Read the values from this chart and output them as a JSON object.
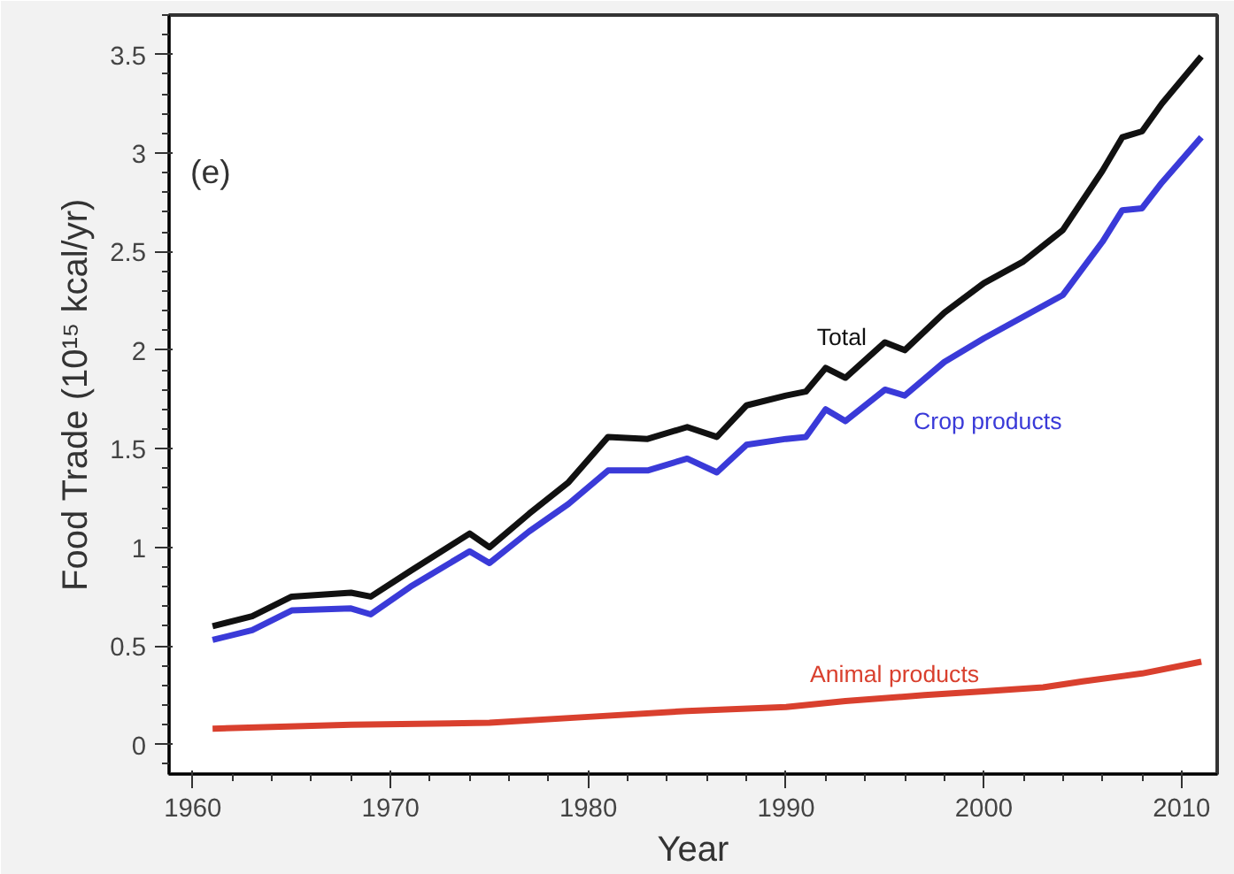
{
  "chart_data": {
    "type": "line",
    "xlabel": "Year",
    "ylabel": "Food Trade (10¹⁵ kcal/yr)",
    "annotations": [
      "(e)"
    ],
    "xlim": [
      1958.8,
      2011.8
    ],
    "ylim": [
      -0.15,
      3.7
    ],
    "xticks": [
      1960,
      1970,
      1980,
      1990,
      2000,
      2010
    ],
    "yticks": [
      0,
      0.5,
      1,
      1.5,
      2,
      2.5,
      3,
      3.5
    ],
    "grid": false,
    "legend": false,
    "marker": "none",
    "line_style": "solid",
    "series": [
      {
        "name": "Total",
        "color": "#111111",
        "x": [
          1961,
          1963,
          1965,
          1968,
          1969,
          1971,
          1974,
          1975,
          1977,
          1979,
          1981,
          1983,
          1985,
          1986.5,
          1988,
          1990,
          1991,
          1992,
          1993,
          1995,
          1996,
          1998,
          2000,
          2002,
          2004,
          2006,
          2007,
          2008,
          2009,
          2011
        ],
        "values": [
          0.6,
          0.65,
          0.75,
          0.77,
          0.75,
          0.88,
          1.07,
          1.0,
          1.17,
          1.33,
          1.56,
          1.55,
          1.61,
          1.56,
          1.72,
          1.77,
          1.79,
          1.91,
          1.86,
          2.04,
          2.0,
          2.19,
          2.34,
          2.45,
          2.61,
          2.91,
          3.08,
          3.11,
          3.25,
          3.49
        ]
      },
      {
        "name": "Crop products",
        "color": "#3a3ad8",
        "x": [
          1961,
          1963,
          1965,
          1968,
          1969,
          1971,
          1974,
          1975,
          1977,
          1979,
          1981,
          1983,
          1985,
          1986.5,
          1988,
          1990,
          1991,
          1992,
          1993,
          1995,
          1996,
          1998,
          2000,
          2002,
          2004,
          2006,
          2007,
          2008,
          2009,
          2011
        ],
        "values": [
          0.53,
          0.58,
          0.68,
          0.69,
          0.66,
          0.8,
          0.98,
          0.92,
          1.08,
          1.22,
          1.39,
          1.39,
          1.45,
          1.38,
          1.52,
          1.55,
          1.56,
          1.7,
          1.64,
          1.8,
          1.77,
          1.94,
          2.06,
          2.17,
          2.28,
          2.55,
          2.71,
          2.72,
          2.85,
          3.08
        ]
      },
      {
        "name": "Animal products",
        "color": "#d9402e",
        "x": [
          1961,
          1968,
          1975,
          1980,
          1985,
          1990,
          1993,
          1997,
          2000,
          2003,
          2005,
          2008,
          2011
        ],
        "values": [
          0.08,
          0.1,
          0.11,
          0.14,
          0.17,
          0.19,
          0.22,
          0.25,
          0.27,
          0.29,
          0.32,
          0.36,
          0.42
        ]
      }
    ]
  }
}
